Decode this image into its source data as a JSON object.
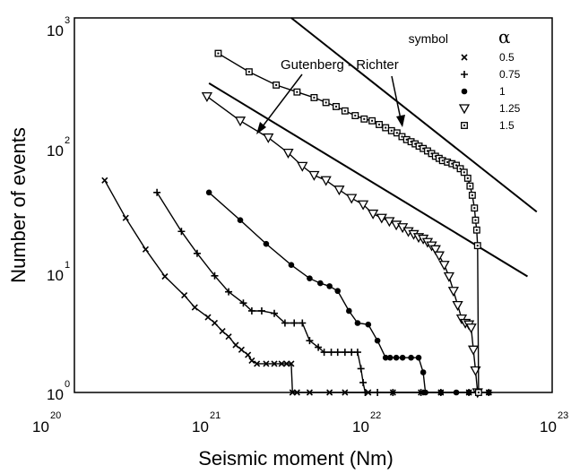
{
  "chart_data": {
    "type": "line",
    "xlabel": "Seismic moment (Nm)",
    "ylabel": "Number of events",
    "xscale": "log",
    "yscale": "log",
    "xlim": [
      1e+20,
      1e+23
    ],
    "ylim": [
      1,
      1000
    ],
    "x_ticks": [
      {
        "base": "10",
        "exp": "20"
      },
      {
        "base": "10",
        "exp": "21"
      },
      {
        "base": "10",
        "exp": "22"
      },
      {
        "base": "10",
        "exp": "23"
      }
    ],
    "y_ticks": [
      {
        "base": "10",
        "exp": "0"
      },
      {
        "base": "10",
        "exp": "1"
      },
      {
        "base": "10",
        "exp": "2"
      },
      {
        "base": "10",
        "exp": "3"
      }
    ],
    "legend": {
      "position": "top-right",
      "header_symbol": "symbol",
      "header_param": "α"
    },
    "annotation": {
      "text": "Gutenberg - Richter"
    },
    "reference_lines": [
      {
        "x": [
          2.3e+21,
          8e+22
        ],
        "y": [
          1000,
          28
        ]
      },
      {
        "x": [
          7e+20,
          7e+22
        ],
        "y": [
          300,
          8.5
        ]
      }
    ],
    "series": [
      {
        "name": "0.5",
        "marker": "x",
        "x": [
          1.55e+20,
          2.1e+20,
          2.8e+20,
          3.7e+20,
          4.9e+20,
          5.7e+20,
          6.9e+20,
          7.6e+20,
          8.5e+20,
          9.3e+20,
          1.03e+21,
          1.12e+21,
          1.23e+21,
          1.3e+21,
          1.4e+21,
          1.6e+21,
          1.8e+21,
          2e+21,
          2.15e+21,
          2.3e+21,
          2.34e+21,
          2.5e+21,
          3e+21,
          4e+21,
          5e+21,
          7e+21,
          1e+22,
          1.5e+22,
          2e+22,
          3e+22,
          4e+22
        ],
        "y": [
          50,
          25,
          14,
          8.5,
          6,
          4.8,
          4,
          3.6,
          3.1,
          2.8,
          2.4,
          2.2,
          2,
          1.8,
          1.7,
          1.7,
          1.7,
          1.7,
          1.7,
          1.7,
          1,
          1,
          1,
          1,
          1,
          1,
          1,
          1,
          1,
          1,
          1
        ]
      },
      {
        "name": "0.75",
        "marker": "plus",
        "x": [
          3.3e+20,
          4.7e+20,
          5.9e+20,
          7.6e+20,
          9.3e+20,
          1.15e+21,
          1.3e+21,
          1.5e+21,
          1.8e+21,
          2.1e+21,
          2.4e+21,
          2.7e+21,
          3e+21,
          3.4e+21,
          3.7e+21,
          4.1e+21,
          4.5e+21,
          5e+21,
          5.5e+21,
          6e+21,
          6.3e+21,
          6.5e+21,
          6.7e+21,
          8e+21,
          1e+22,
          1.5e+22,
          2e+22,
          3e+22,
          4e+22
        ],
        "y": [
          40,
          19.5,
          13,
          8.6,
          6.4,
          5.2,
          4.5,
          4.5,
          4.3,
          3.6,
          3.6,
          3.6,
          2.6,
          2.3,
          2.1,
          2.1,
          2.1,
          2.1,
          2.1,
          2.1,
          1.55,
          1.2,
          1,
          1,
          1,
          1,
          1,
          1,
          1
        ]
      },
      {
        "name": "1",
        "marker": "dot",
        "x": [
          7e+20,
          1.1e+21,
          1.6e+21,
          2.3e+21,
          3e+21,
          3.5e+21,
          4e+21,
          4.5e+21,
          5.3e+21,
          6e+21,
          7e+21,
          8e+21,
          9e+21,
          9.6e+21,
          1.05e+22,
          1.15e+22,
          1.3e+22,
          1.45e+22,
          1.55e+22,
          1.6e+22,
          2e+22,
          2.5e+22,
          3e+22,
          4e+22
        ],
        "y": [
          40,
          24,
          15.5,
          10.5,
          8.2,
          7.5,
          7.1,
          6.5,
          4.5,
          3.6,
          3.5,
          2.6,
          1.9,
          1.9,
          1.9,
          1.9,
          1.9,
          1.9,
          1.45,
          1,
          1,
          1,
          1,
          1
        ]
      },
      {
        "name": "1.25",
        "marker": "triangle-down",
        "x": [
          6.8e+20,
          1.1e+21,
          1.65e+21,
          2.2e+21,
          2.7e+21,
          3.2e+21,
          3.8e+21,
          4.6e+21,
          5.5e+21,
          6.5e+21,
          7.5e+21,
          8.5e+21,
          9.5e+21,
          1.05e+22,
          1.15e+22,
          1.25e+22,
          1.35e+22,
          1.45e+22,
          1.55e+22,
          1.65e+22,
          1.75e+22,
          1.85e+22,
          1.95e+22,
          2.1e+22,
          2.25e+22,
          2.4e+22,
          2.55e+22,
          2.7e+22,
          2.85e+22,
          3e+22,
          3.1e+22,
          3.2e+22,
          3.3e+22,
          3.4e+22
        ],
        "y": [
          235,
          150,
          110,
          83,
          65,
          55,
          50,
          42,
          36,
          32,
          27,
          25,
          23.5,
          22,
          21,
          19.5,
          18.5,
          17.5,
          17,
          16,
          15,
          14,
          12.5,
          10.5,
          8.5,
          6.5,
          5,
          3.9,
          3.6,
          3.5,
          3.3,
          2.2,
          1.5,
          1
        ]
      },
      {
        "name": "1.5",
        "marker": "square",
        "x": [
          8e+20,
          1.25e+21,
          1.85e+21,
          2.5e+21,
          3.2e+21,
          3.8e+21,
          4.4e+21,
          5e+21,
          5.8e+21,
          6.6e+21,
          7.4e+21,
          8.2e+21,
          9e+21,
          9.8e+21,
          1.06e+22,
          1.14e+22,
          1.22e+22,
          1.3e+22,
          1.38e+22,
          1.46e+22,
          1.55e+22,
          1.65e+22,
          1.75e+22,
          1.85e+22,
          1.95e+22,
          2.05e+22,
          2.2e+22,
          2.35e+22,
          2.5e+22,
          2.65e+22,
          2.8e+22,
          2.95e+22,
          3.05e+22,
          3.15e+22,
          3.25e+22,
          3.3e+22,
          3.36e+22,
          3.4e+22,
          3.45e+22
        ],
        "y": [
          520,
          370,
          290,
          255,
          230,
          210,
          195,
          180,
          165,
          155,
          150,
          140,
          132,
          125,
          120,
          112,
          106,
          102,
          98,
          94,
          90,
          86,
          82,
          78,
          75,
          72,
          70,
          68,
          66,
          62,
          58,
          52,
          45,
          38,
          30,
          24,
          20,
          15,
          1
        ]
      }
    ]
  }
}
